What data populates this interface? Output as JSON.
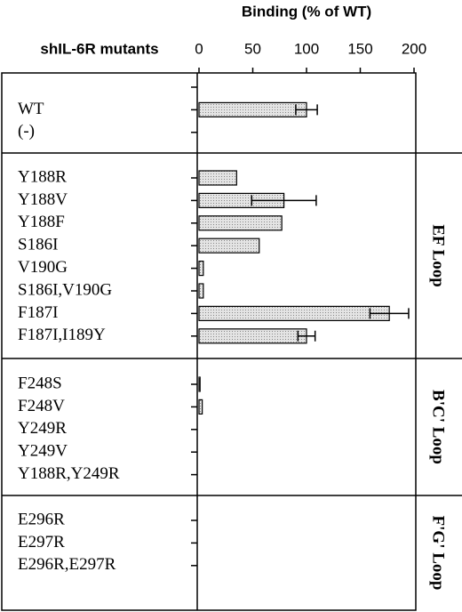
{
  "chart_data": {
    "type": "bar",
    "orientation": "horizontal",
    "title": "Binding (% of WT)",
    "y_axis_label": "shIL-6R mutants",
    "xlim": [
      0,
      200
    ],
    "xticks": [
      0,
      50,
      100,
      150,
      200
    ],
    "color": "#cfcfcf",
    "panels": [
      {
        "categories": [
          null,
          "WT",
          "(-)"
        ],
        "values": [
          null,
          100,
          0
        ],
        "errors": [
          null,
          10,
          null
        ]
      },
      {
        "name": "EF Loop",
        "categories": [
          "Y188R",
          "Y188V",
          "Y188F",
          "S186I",
          "V190G",
          "S186I,V190G",
          "F187I",
          "F187I,I189Y"
        ],
        "values": [
          35,
          79,
          77,
          56,
          4,
          4,
          177,
          100
        ],
        "errors": [
          null,
          30,
          null,
          null,
          null,
          null,
          18,
          8
        ]
      },
      {
        "name": "B'C' Loop",
        "categories": [
          "F248S",
          "F248V",
          "Y249R",
          "Y249V",
          "Y188R,Y249R"
        ],
        "values": [
          1,
          3,
          0,
          0,
          0
        ],
        "errors": [
          null,
          null,
          null,
          null,
          null
        ]
      },
      {
        "name": "F'G' Loop",
        "categories": [
          "E296R",
          "E297R",
          "E296R,E297R"
        ],
        "values": [
          0,
          0,
          0
        ],
        "errors": [
          null,
          null,
          null
        ]
      }
    ]
  }
}
